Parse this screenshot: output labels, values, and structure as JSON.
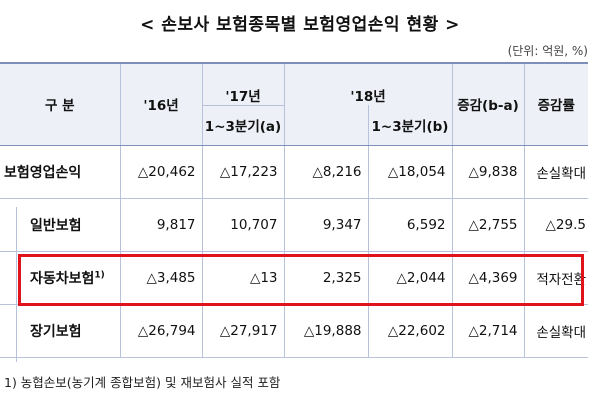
{
  "title": "< 손보사 보험종목별 보험영업손익 현황 >",
  "unit": "(단위: 억원, %)",
  "headers": {
    "category": "구    분",
    "y16": "'16년",
    "y17": "'17년",
    "y18_group": "'18년",
    "q13_a": "1~3분기(a)",
    "q13_b": "1~3분기(b)",
    "change": "증감(b-a)",
    "rate": "증감률"
  },
  "rows": [
    {
      "label": "보험영업손익",
      "y16": "△20,462",
      "y17": "△17,223",
      "a": "△8,216",
      "b": "△18,054",
      "change": "△9,838",
      "rate": "손실확대"
    },
    {
      "label": "일반보험",
      "y16": "9,817",
      "y17": "10,707",
      "a": "9,347",
      "b": "6,592",
      "change": "△2,755",
      "rate": "△29.5"
    },
    {
      "label": "자동차보험",
      "sup": "1)",
      "y16": "△3,485",
      "y17": "△13",
      "a": "2,325",
      "b": "△2,044",
      "change": "△4,369",
      "rate": "적자전환"
    },
    {
      "label": "장기보험",
      "y16": "△26,794",
      "y17": "△27,917",
      "a": "△19,888",
      "b": "△22,602",
      "change": "△2,714",
      "rate": "손실확대"
    }
  ],
  "footnote": "1) 농협손보(농기계 종합보험) 및 재보험사 실적 포함"
}
